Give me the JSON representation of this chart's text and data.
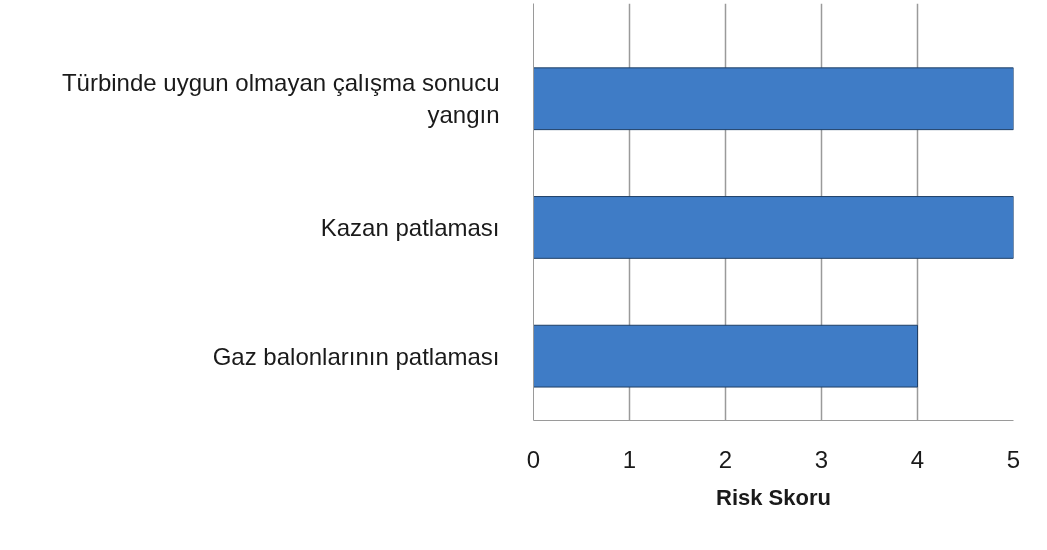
{
  "chart_data": {
    "type": "bar",
    "orientation": "horizontal",
    "xlabel": "Risk Skoru",
    "categories": [
      "Türbinde uygun olmayan çalışma sonucu yangın",
      "Kazan patlaması",
      "Gaz balonlarının patlaması"
    ],
    "values": [
      5,
      5,
      4
    ],
    "color": "#3f7cc6",
    "xlim": [
      0,
      5
    ],
    "xticks": [
      0,
      1,
      2,
      3,
      4,
      5
    ],
    "grid": "x"
  }
}
